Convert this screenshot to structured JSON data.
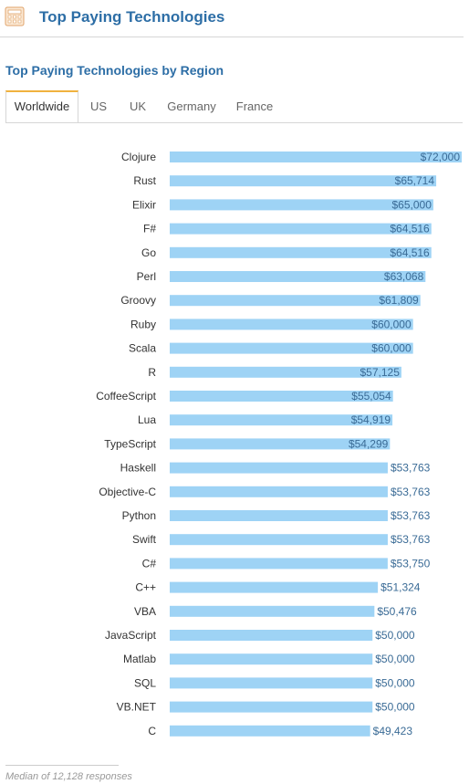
{
  "header": {
    "title": "Top Paying Technologies",
    "icon": "calculator-icon"
  },
  "subtitle": "Top Paying Technologies by Region",
  "tabs": [
    {
      "label": "Worldwide",
      "active": true
    },
    {
      "label": "US",
      "active": false
    },
    {
      "label": "UK",
      "active": false
    },
    {
      "label": "Germany",
      "active": false
    },
    {
      "label": "France",
      "active": false
    }
  ],
  "footnote": "Median of 12,128 responses",
  "colors": {
    "bar": "#9ed3f5",
    "value_label": "#3a6b96",
    "accent": "#2d6ea6",
    "tab_active_border": "#f0b23e"
  },
  "chart_data": {
    "type": "bar",
    "orientation": "horizontal",
    "title": "",
    "xlabel": "",
    "ylabel": "",
    "xlim": [
      0,
      72000
    ],
    "categories": [
      "Clojure",
      "Rust",
      "Elixir",
      "F#",
      "Go",
      "Perl",
      "Groovy",
      "Ruby",
      "Scala",
      "R",
      "CoffeeScript",
      "Lua",
      "TypeScript",
      "Haskell",
      "Objective-C",
      "Python",
      "Swift",
      "C#",
      "C++",
      "VBA",
      "JavaScript",
      "Matlab",
      "SQL",
      "VB.NET",
      "C"
    ],
    "values": [
      72000,
      65714,
      65000,
      64516,
      64516,
      63068,
      61809,
      60000,
      60000,
      57125,
      55054,
      54919,
      54299,
      53763,
      53763,
      53763,
      53763,
      53750,
      51324,
      50476,
      50000,
      50000,
      50000,
      50000,
      49423
    ],
    "value_labels": [
      "$72,000",
      "$65,714",
      "$65,000",
      "$64,516",
      "$64,516",
      "$63,068",
      "$61,809",
      "$60,000",
      "$60,000",
      "$57,125",
      "$55,054",
      "$54,919",
      "$54,299",
      "$53,763",
      "$53,763",
      "$53,763",
      "$53,763",
      "$53,750",
      "$51,324",
      "$50,476",
      "$50,000",
      "$50,000",
      "$50,000",
      "$50,000",
      "$49,423"
    ]
  }
}
